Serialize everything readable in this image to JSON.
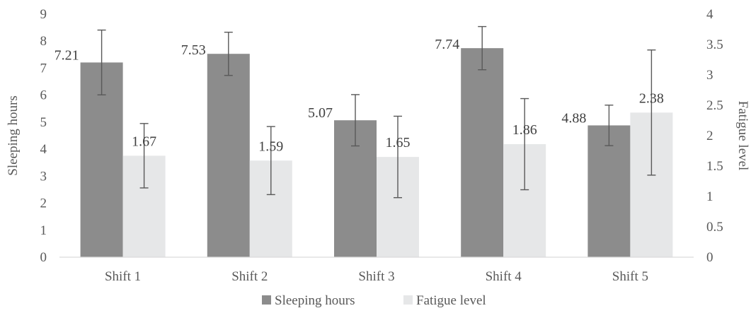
{
  "chart_data": {
    "type": "bar",
    "categories": [
      "Shift 1",
      "Shift 2",
      "Shift 3",
      "Shift 4",
      "Shift 5"
    ],
    "series": [
      {
        "name": "Sleeping hours",
        "axis": "left",
        "color": "#8c8c8c",
        "values": [
          7.21,
          7.53,
          5.07,
          7.74,
          4.88
        ],
        "labels": [
          "7.21",
          "7.53",
          "5.07",
          "7.74",
          "4.88"
        ],
        "error": [
          1.2,
          0.8,
          0.95,
          0.8,
          0.75
        ]
      },
      {
        "name": "Fatigue level",
        "axis": "right",
        "color": "#e6e7e8",
        "values": [
          1.67,
          1.59,
          1.65,
          1.86,
          2.38
        ],
        "labels": [
          "1.67",
          "1.59",
          "1.65",
          "1.86",
          "2.38"
        ],
        "error": [
          0.53,
          0.56,
          0.67,
          0.75,
          1.03
        ]
      }
    ],
    "ylabel": "Sleeping hours",
    "y2label": "Fatigue level",
    "ylim": [
      0,
      9
    ],
    "y2lim": [
      0,
      4
    ],
    "yticks": [
      "0",
      "1",
      "2",
      "3",
      "4",
      "5",
      "6",
      "7",
      "8",
      "9"
    ],
    "y2ticks": [
      "0",
      "0.5",
      "1",
      "1.5",
      "2",
      "2.5",
      "3",
      "3.5",
      "4"
    ],
    "grid": false,
    "legend_position": "bottom",
    "error_bar_color": "#595959"
  }
}
